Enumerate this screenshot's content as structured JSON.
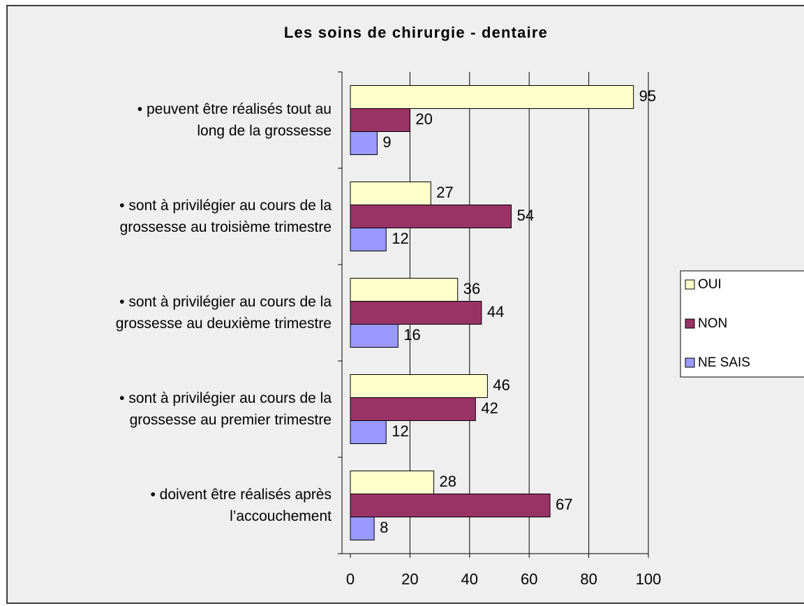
{
  "chart_data": {
    "type": "barh",
    "title": "Les soins de chirurgie - dentaire",
    "categories": [
      "• peuvent être réalisés tout au\nlong de la grossesse",
      "• sont à privilégier  au cours de la\ngrossesse au troisième trimestre",
      "• sont à privilégier  au cours de la\ngrossesse au deuxième trimestre",
      "• sont à privilégier  au cours de la\ngrossesse au premier trimestre",
      "• doivent être réalisés après\nl’accouchement"
    ],
    "series": [
      {
        "name": "OUI",
        "color": "#ffffcc",
        "values": [
          95,
          27,
          36,
          46,
          28
        ]
      },
      {
        "name": "NON",
        "color": "#993366",
        "values": [
          20,
          54,
          44,
          42,
          67
        ]
      },
      {
        "name": "NE SAIS",
        "color": "#9999ff",
        "values": [
          9,
          12,
          16,
          12,
          8
        ]
      }
    ],
    "xlim": [
      0,
      100
    ],
    "xticks": [
      0,
      20,
      40,
      60,
      80,
      100
    ],
    "grid": true,
    "legend": "right"
  }
}
